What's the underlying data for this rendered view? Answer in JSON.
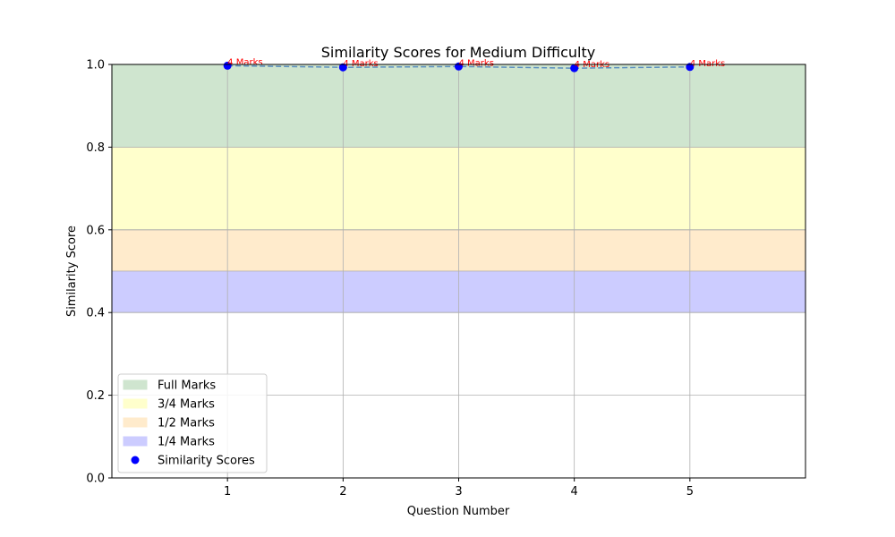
{
  "chart_data": {
    "type": "scatter",
    "title": "Similarity Scores for Medium Difficulty",
    "xlabel": "Question Number",
    "ylabel": "Similarity Score",
    "xlim": [
      0,
      6
    ],
    "ylim": [
      0.0,
      1.0
    ],
    "xticks": [
      1,
      2,
      3,
      4,
      5
    ],
    "yticks": [
      0.0,
      0.2,
      0.4,
      0.6,
      0.8,
      1.0
    ],
    "ytick_labels": [
      "0.0",
      "0.2",
      "0.4",
      "0.6",
      "0.8",
      "1.0"
    ],
    "grid": true,
    "bands": [
      {
        "name": "Full Marks",
        "from": 0.8,
        "to": 1.0,
        "color": "#cfe5cf"
      },
      {
        "name": "3/4 Marks",
        "from": 0.6,
        "to": 0.8,
        "color": "#ffffcc"
      },
      {
        "name": "1/2 Marks",
        "from": 0.5,
        "to": 0.6,
        "color": "#ffebcc"
      },
      {
        "name": "1/4 Marks",
        "from": 0.4,
        "to": 0.5,
        "color": "#ccccff"
      }
    ],
    "series": [
      {
        "name": "Similarity Scores",
        "x": [
          1,
          2,
          3,
          4,
          5
        ],
        "y": [
          0.997,
          0.993,
          0.995,
          0.991,
          0.994
        ],
        "labels": [
          "4 Marks",
          "4 Marks",
          "4 Marks",
          "4 Marks",
          "4 Marks"
        ],
        "color": "#0000ff",
        "line_color": "#5a8fc0",
        "label_color": "#ff0000"
      }
    ],
    "legend_position": "lower-left"
  }
}
